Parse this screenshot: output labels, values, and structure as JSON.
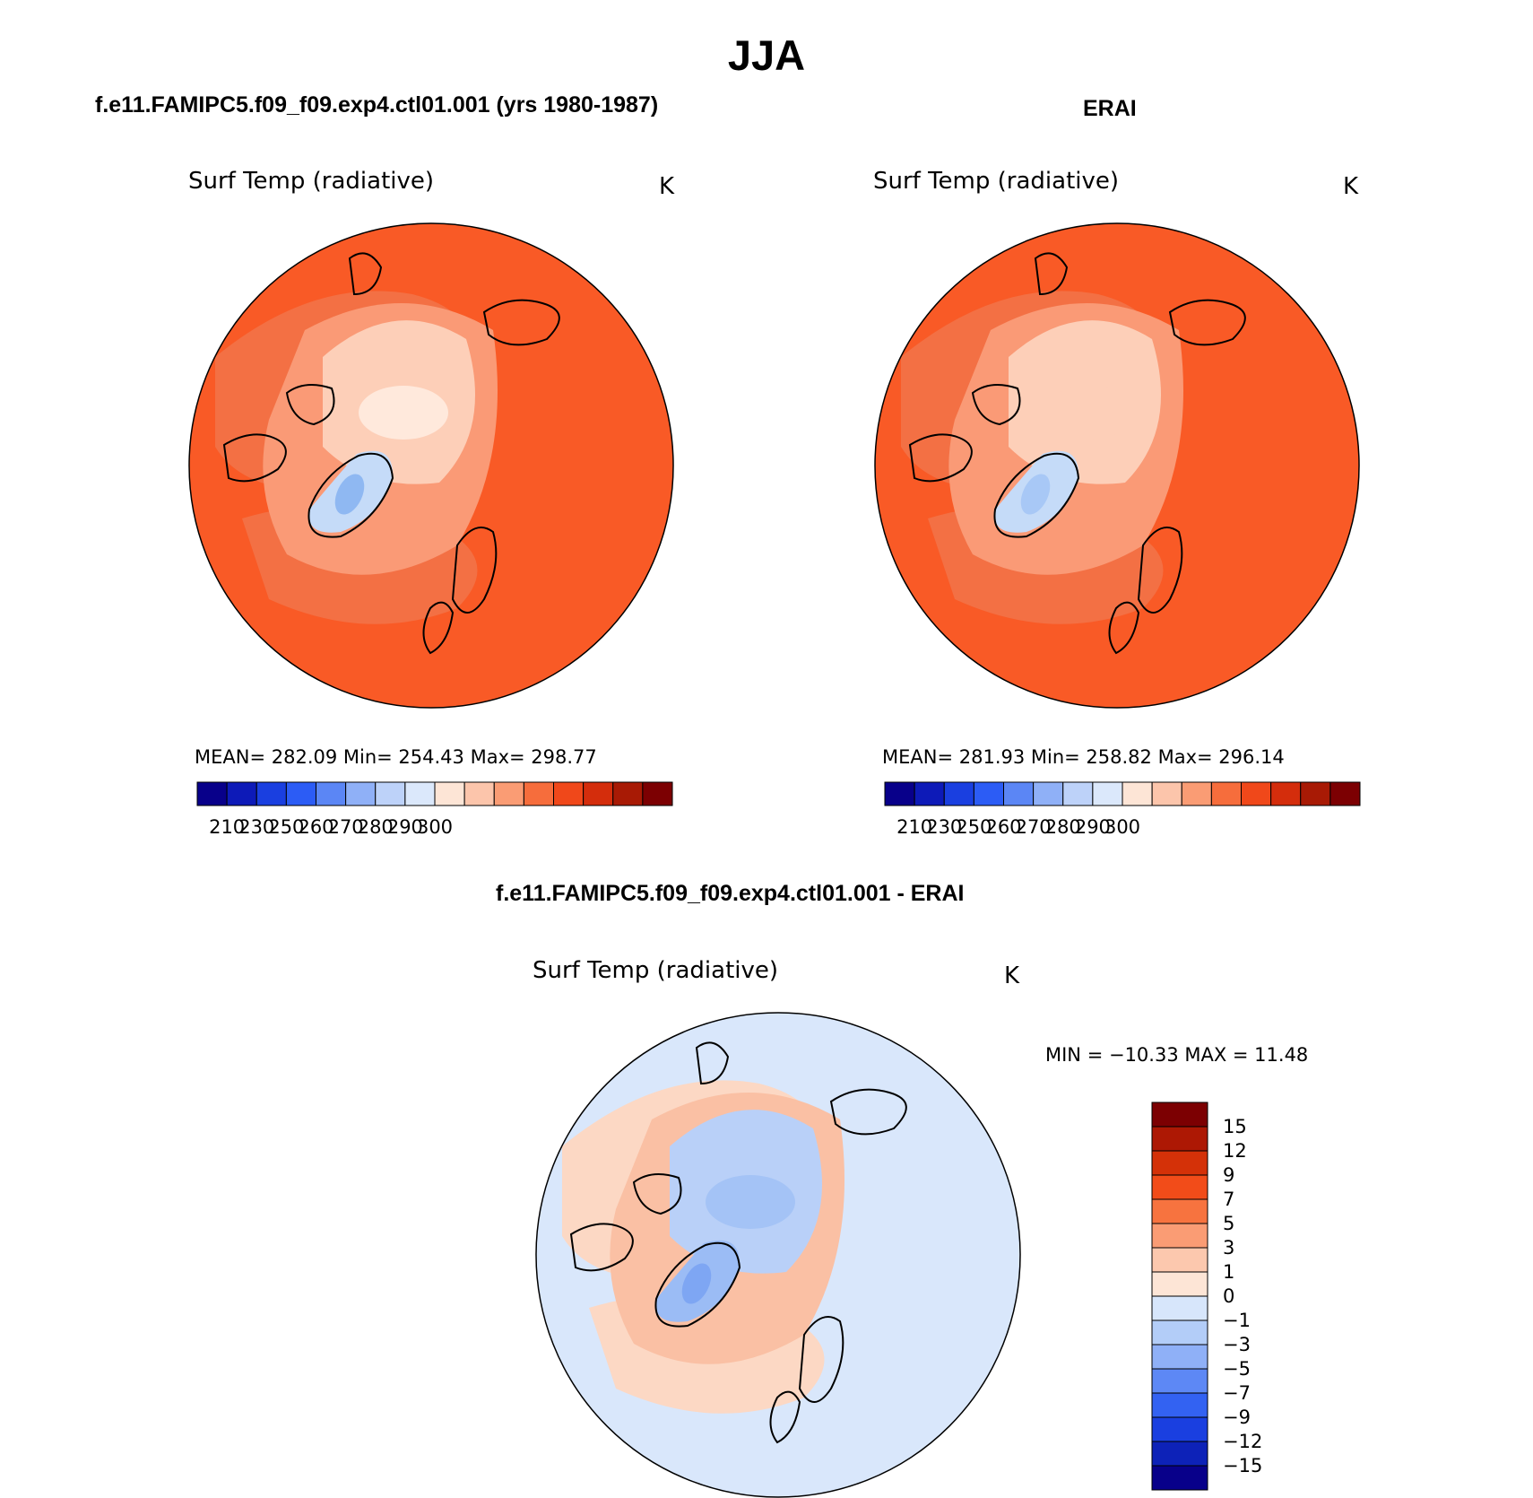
{
  "figure": {
    "title": "JJA",
    "panels": [
      {
        "id": "model",
        "subtitle": "f.e11.FAMIPC5.f09_f09.exp4.ctl01.001 (yrs 1980-1987)",
        "variable_label": "Surf Temp (radiative)",
        "units": "K",
        "stats": "MEAN= 282.09   Min= 254.43   Max= 298.77",
        "colorbar_ticks": [
          "210",
          "230",
          "250",
          "260",
          "270",
          "280",
          "290",
          "300"
        ],
        "map_style": {
          "ocean": "#f95a26",
          "band1": "#f37044",
          "band2": "#fa9a76",
          "pole": "#fdcfb8",
          "polecore": "#ffe9dc",
          "greenland": "#c5dbf8",
          "gl_core": "#8fb8f2"
        }
      },
      {
        "id": "obs",
        "subtitle": "ERAI",
        "variable_label": "Surf Temp (radiative)",
        "units": "K",
        "stats": "MEAN= 281.93   Min= 258.82   Max= 296.14",
        "colorbar_ticks": [
          "210",
          "230",
          "250",
          "260",
          "270",
          "280",
          "290",
          "300"
        ],
        "map_style": {
          "ocean": "#f95a26",
          "band1": "#f37044",
          "band2": "#fa9a76",
          "pole": "#fdcfb8",
          "polecore": "#fdcfb8",
          "greenland": "#c5dbf8",
          "gl_core": "#a8c8f6"
        }
      }
    ],
    "absolute_colorbar_colors": [
      "#08008a",
      "#0d1ab8",
      "#1a3fe0",
      "#2c5cf5",
      "#5b86f5",
      "#8fb0f7",
      "#bdd2f9",
      "#dbe8fb",
      "#fde5d6",
      "#fcc5ab",
      "#fa9c74",
      "#f66d3c",
      "#f0481a",
      "#d42d0c",
      "#a81a05",
      "#7c0002"
    ],
    "difference": {
      "subtitle": "f.e11.FAMIPC5.f09_f09.exp4.ctl01.001 - ERAI",
      "variable_label": "Surf Temp (radiative)",
      "units": "K",
      "stats": "MIN = −10.33 MAX =   11.48",
      "colorbar_ticks": [
        "15",
        "12",
        "9",
        "7",
        "5",
        "3",
        "1",
        "0",
        "−1",
        "−3",
        "−5",
        "−7",
        "−9",
        "−12",
        "−15"
      ],
      "colorbar_colors": [
        "#7c0002",
        "#ad1804",
        "#d43108",
        "#f24c19",
        "#f7733f",
        "#fa9c74",
        "#fcc8ae",
        "#fde5d6",
        "#d7e6fb",
        "#b3cdf8",
        "#8fb0f7",
        "#5d88f5",
        "#3362f2",
        "#1a3fe0",
        "#0d22b8",
        "#08008a"
      ],
      "map_style": {
        "ocean": "#d9e7fb",
        "band1": "#fcd8c4",
        "band2": "#fac0a4",
        "pole": "#b9d0f8",
        "polecore": "#a4c3f6",
        "greenland": "#9bbcf5",
        "gl_core": "#7ea6f3"
      }
    }
  }
}
